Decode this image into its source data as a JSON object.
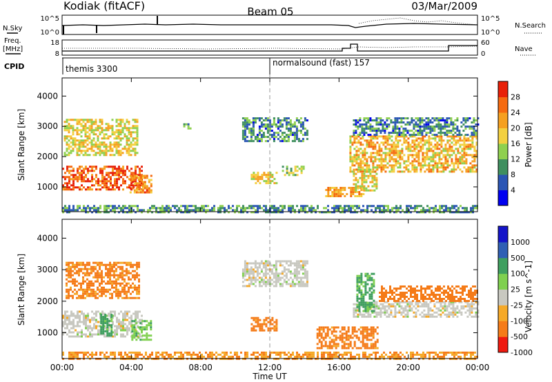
{
  "header": {
    "station": "Kodiak (fitACF)",
    "beam": "Beam 05",
    "date": "03/Mar/2009"
  },
  "status_panels": {
    "nsky_label": "N.Sky",
    "nsearch_label": "N.Search",
    "left_ticks": [
      "10^5",
      "10^0"
    ],
    "right_ticks": [
      "10^5",
      "10^0"
    ],
    "freq_label_1": "Freq.",
    "freq_label_2": "[MHz]",
    "freq_ticks": [
      "18",
      "8"
    ],
    "nave_label": "Nave",
    "nave_ticks": [
      "60",
      "0"
    ],
    "cpid_label": "CPID",
    "cpid_1": "themis 3300",
    "cpid_2": "normalsound (fast) 157",
    "cpid_change_hour": 12
  },
  "chart_data": [
    {
      "type": "heatmap",
      "title": "",
      "xlabel": "Time UT",
      "ylabel": "Slant Range [km]",
      "xlim": [
        0,
        24
      ],
      "ylim": [
        180,
        4600
      ],
      "x_ticks": [
        "00:00",
        "04:00",
        "08:00",
        "12:00",
        "16:00",
        "20:00",
        "00:00"
      ],
      "y_ticks": [
        1000,
        2000,
        3000,
        4000
      ],
      "colorbar": {
        "label": "Power [dB]",
        "ticks": [
          "28",
          "24",
          "20",
          "16",
          "12",
          "8",
          "4"
        ],
        "tick_values": [
          28,
          24,
          20,
          16,
          12,
          8,
          4
        ],
        "range": [
          0,
          32
        ],
        "colors": [
          "#0000f0",
          "#2a55b4",
          "#3f8f5f",
          "#8fd04f",
          "#f3d040",
          "#f5a020",
          "#f56a10",
          "#e82008"
        ]
      },
      "regions": [
        {
          "x": [
            0.0,
            4.6
          ],
          "y": [
            900,
            1700
          ],
          "value": 27
        },
        {
          "x": [
            0.1,
            4.4
          ],
          "y": [
            2050,
            3250
          ],
          "value": 18
        },
        {
          "x": [
            3.9,
            5.1
          ],
          "y": [
            800,
            1400
          ],
          "value": 23
        },
        {
          "x": [
            7.0,
            7.4
          ],
          "y": [
            2900,
            3100
          ],
          "value": 10
        },
        {
          "x": [
            10.4,
            14.2
          ],
          "y": [
            2500,
            3300
          ],
          "value": 9
        },
        {
          "x": [
            10.9,
            12.4
          ],
          "y": [
            1100,
            1500
          ],
          "value": 18
        },
        {
          "x": [
            12.7,
            14.0
          ],
          "y": [
            1400,
            1700
          ],
          "value": 14
        },
        {
          "x": [
            15.2,
            17.4
          ],
          "y": [
            700,
            1000
          ],
          "value": 22
        },
        {
          "x": [
            16.8,
            18.2
          ],
          "y": [
            900,
            1600
          ],
          "value": 18
        },
        {
          "x": [
            16.6,
            24.0
          ],
          "y": [
            1500,
            2700
          ],
          "value": 20
        },
        {
          "x": [
            16.8,
            24.0
          ],
          "y": [
            2700,
            3300
          ],
          "value": 9
        },
        {
          "x": [
            0.0,
            24.0
          ],
          "y": [
            180,
            400
          ],
          "value": 10
        }
      ]
    },
    {
      "type": "heatmap",
      "title": "",
      "xlabel": "Time UT",
      "ylabel": "Slant Range [km]",
      "xlim": [
        0,
        24
      ],
      "ylim": [
        180,
        4600
      ],
      "x_ticks": [
        "00:00",
        "04:00",
        "08:00",
        "12:00",
        "16:00",
        "20:00",
        "00:00"
      ],
      "y_ticks": [
        1000,
        2000,
        3000,
        4000
      ],
      "colorbar": {
        "label": "Velocity [m s^-1]",
        "ticks": [
          "1000",
          "500",
          "100",
          "25",
          "-25",
          "-100",
          "-500",
          "-1000"
        ],
        "tick_values": [
          1000,
          500,
          100,
          25,
          -25,
          -100,
          -500,
          -1000
        ],
        "colors": [
          "#ef1a10",
          "#f57b18",
          "#f5a928",
          "#c8c8c0",
          "#7fd04f",
          "#3f9f5f",
          "#2f5fb4",
          "#1414c8"
        ]
      },
      "regions": [
        {
          "x": [
            0.0,
            4.6
          ],
          "y": [
            900,
            1700
          ],
          "value": 0
        },
        {
          "x": [
            0.2,
            4.4
          ],
          "y": [
            2100,
            3250
          ],
          "value": -150
        },
        {
          "x": [
            2.2,
            2.9
          ],
          "y": [
            900,
            1600
          ],
          "value": 200
        },
        {
          "x": [
            4.0,
            5.1
          ],
          "y": [
            800,
            1400
          ],
          "value": 80
        },
        {
          "x": [
            10.4,
            14.2
          ],
          "y": [
            2500,
            3300
          ],
          "value": 0
        },
        {
          "x": [
            10.9,
            12.4
          ],
          "y": [
            1100,
            1500
          ],
          "value": -200
        },
        {
          "x": [
            14.7,
            18.2
          ],
          "y": [
            500,
            1200
          ],
          "value": -200
        },
        {
          "x": [
            16.8,
            24.0
          ],
          "y": [
            1500,
            2000
          ],
          "value": 0
        },
        {
          "x": [
            18.3,
            24.0
          ],
          "y": [
            2000,
            2500
          ],
          "value": -300
        },
        {
          "x": [
            17.0,
            18.0
          ],
          "y": [
            1700,
            2900
          ],
          "value": 150
        },
        {
          "x": [
            0.0,
            24.0
          ],
          "y": [
            180,
            400
          ],
          "value": -100
        }
      ]
    }
  ]
}
